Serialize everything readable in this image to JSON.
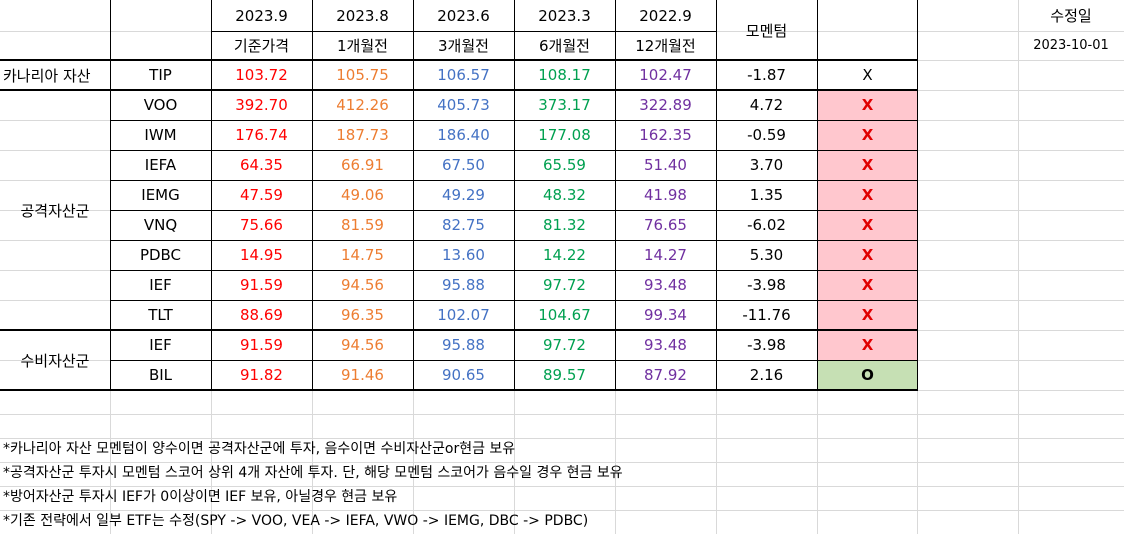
{
  "header": {
    "dates": [
      "2023.9",
      "2023.8",
      "2023.6",
      "2023.3",
      "2022.9"
    ],
    "periods": [
      "기준가격",
      "1개월전",
      "3개월전",
      "6개월전",
      "12개월전"
    ],
    "momentum_label": "모멘텀",
    "modified_label": "수정일",
    "modified_date": "2023-10-01"
  },
  "groups": {
    "canary": "카나리아 자산",
    "offense": "공격자산군",
    "defense": "수비자산군"
  },
  "rows": [
    {
      "ticker": "TIP",
      "p0": "103.72",
      "p1": "105.75",
      "p3": "106.57",
      "p6": "108.17",
      "p12": "102.47",
      "momentum": "-1.87",
      "flag": "X"
    },
    {
      "ticker": "VOO",
      "p0": "392.70",
      "p1": "412.26",
      "p3": "405.73",
      "p6": "373.17",
      "p12": "322.89",
      "momentum": "4.72",
      "flag": "X"
    },
    {
      "ticker": "IWM",
      "p0": "176.74",
      "p1": "187.73",
      "p3": "186.40",
      "p6": "177.08",
      "p12": "162.35",
      "momentum": "-0.59",
      "flag": "X"
    },
    {
      "ticker": "IEFA",
      "p0": "64.35",
      "p1": "66.91",
      "p3": "67.50",
      "p6": "65.59",
      "p12": "51.40",
      "momentum": "3.70",
      "flag": "X"
    },
    {
      "ticker": "IEMG",
      "p0": "47.59",
      "p1": "49.06",
      "p3": "49.29",
      "p6": "48.32",
      "p12": "41.98",
      "momentum": "1.35",
      "flag": "X"
    },
    {
      "ticker": "VNQ",
      "p0": "75.66",
      "p1": "81.59",
      "p3": "82.75",
      "p6": "81.32",
      "p12": "76.65",
      "momentum": "-6.02",
      "flag": "X"
    },
    {
      "ticker": "PDBC",
      "p0": "14.95",
      "p1": "14.75",
      "p3": "13.60",
      "p6": "14.22",
      "p12": "14.27",
      "momentum": "5.30",
      "flag": "X"
    },
    {
      "ticker": "IEF",
      "p0": "91.59",
      "p1": "94.56",
      "p3": "95.88",
      "p6": "97.72",
      "p12": "93.48",
      "momentum": "-3.98",
      "flag": "X"
    },
    {
      "ticker": "TLT",
      "p0": "88.69",
      "p1": "96.35",
      "p3": "102.07",
      "p6": "104.67",
      "p12": "99.34",
      "momentum": "-11.76",
      "flag": "X"
    },
    {
      "ticker": "IEF",
      "p0": "91.59",
      "p1": "94.56",
      "p3": "95.88",
      "p6": "97.72",
      "p12": "93.48",
      "momentum": "-3.98",
      "flag": "X"
    },
    {
      "ticker": "BIL",
      "p0": "91.82",
      "p1": "91.46",
      "p3": "90.65",
      "p6": "89.57",
      "p12": "87.92",
      "momentum": "2.16",
      "flag": "O"
    }
  ],
  "colors": {
    "flag_x_bg": "#ffc7ce",
    "flag_o_bg": "#c6e0b4",
    "flag_x_text": "#e00000"
  },
  "notes": [
    "*카나리아 자산 모멘텀이 양수이면 공격자산군에 투자, 음수이면 수비자산군or현금 보유",
    "*공격자산군 투자시 모멘텀 스코어 상위 4개 자산에 투자. 단, 해당 모멘텀 스코어가 음수일 경우 현금 보유",
    "*방어자산군 투자시 IEF가 0이상이면 IEF 보유, 아닐경우 현금 보유",
    "*기존 전략에서 일부 ETF는 수정(SPY -> VOO, VEA -> IEFA, VWO -> IEMG, DBC -> PDBC)"
  ]
}
